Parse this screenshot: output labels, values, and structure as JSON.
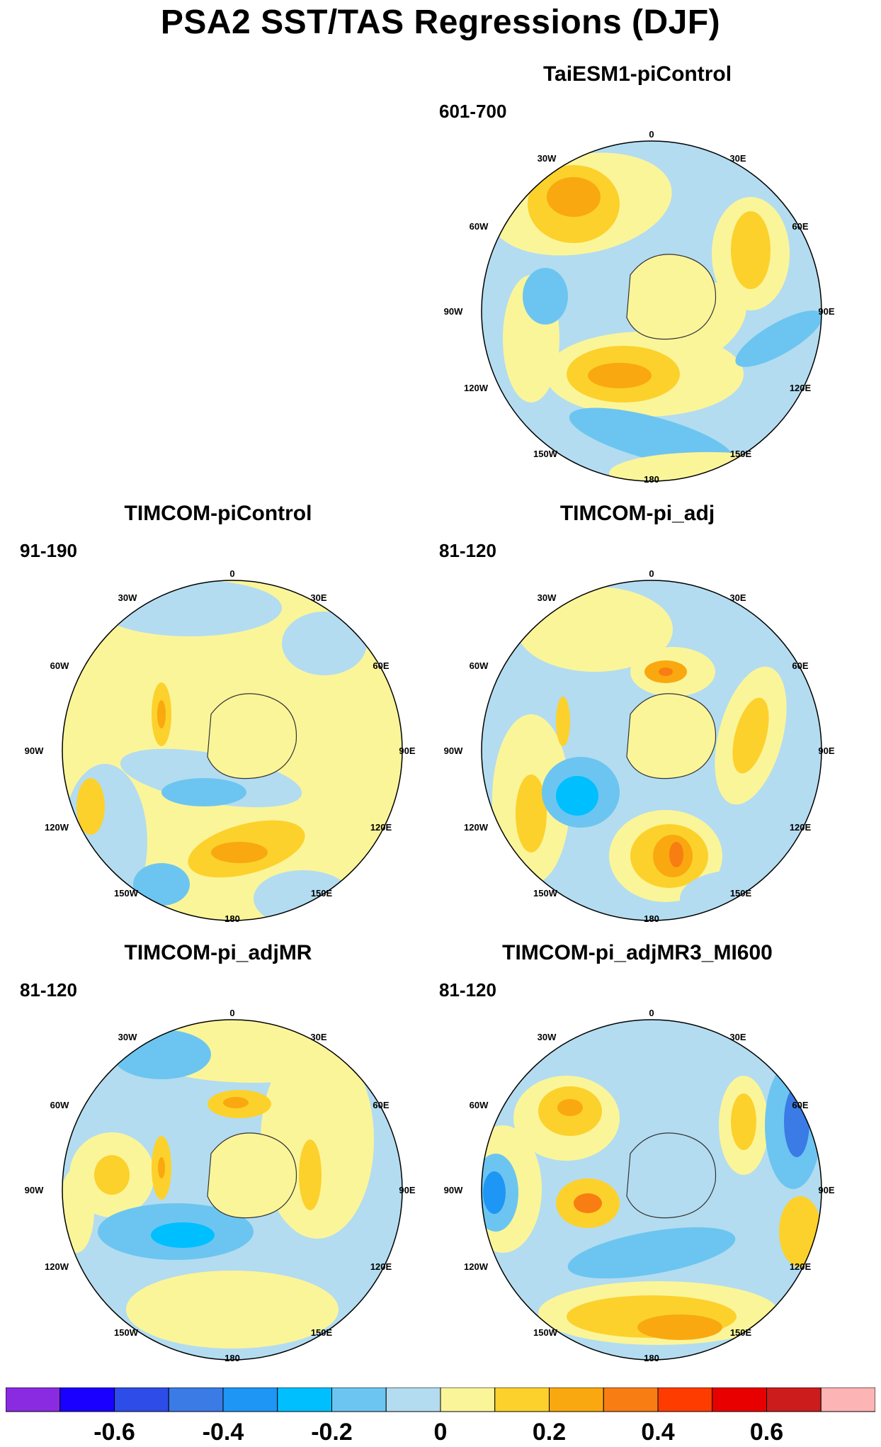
{
  "title": "PSA2 SST/TAS Regressions (DJF)",
  "panels": [
    {
      "title": "TaiESM1-piControl",
      "range": "601-700"
    },
    {
      "title": "TIMCOM-piControl",
      "range": "91-190"
    },
    {
      "title": "TIMCOM-pi_adj",
      "range": "81-120"
    },
    {
      "title": "TIMCOM-pi_adjMR",
      "range": "81-120"
    },
    {
      "title": "TIMCOM-pi_adjMR3_MI600",
      "range": "81-120"
    }
  ],
  "longitude_labels": [
    "0",
    "30E",
    "60E",
    "90E",
    "120E",
    "150E",
    "180",
    "150W",
    "120W",
    "90W",
    "60W",
    "30W"
  ],
  "colorbar": {
    "colors": [
      "#8a2be2",
      "#1a00ff",
      "#2d4ce8",
      "#3a7be6",
      "#1e96f5",
      "#00bfff",
      "#6cc5f0",
      "#b3dcf0",
      "#fbf59a",
      "#fcd12c",
      "#faa80f",
      "#f87d12",
      "#ff3c00",
      "#e80000",
      "#cc1c1c",
      "#fcb4b4"
    ],
    "tick_labels": [
      "-0.6",
      "-0.4",
      "-0.2",
      "0",
      "0.2",
      "0.4",
      "0.6"
    ]
  }
}
